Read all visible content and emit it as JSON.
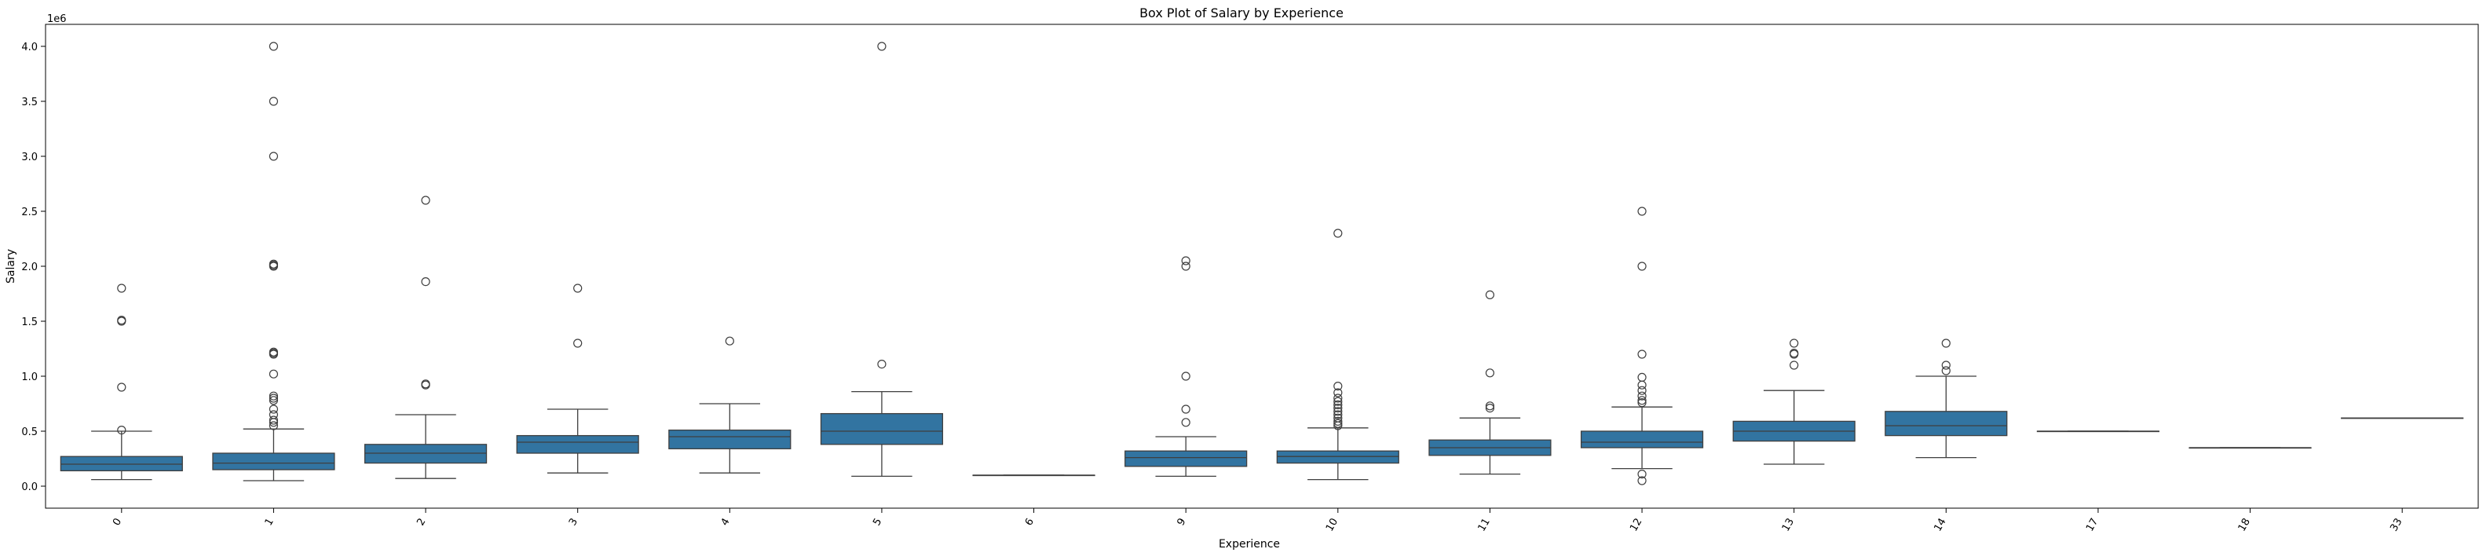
{
  "chart_data": {
    "type": "box",
    "title": "Box Plot of Salary by Experience",
    "xlabel": "Experience",
    "ylabel": "Salary",
    "y_offset_label": "1e6",
    "y_multiplier": 1000000,
    "ylim": [
      -0.2,
      4.2
    ],
    "yticks": [
      0.0,
      0.5,
      1.0,
      1.5,
      2.0,
      2.5,
      3.0,
      3.5,
      4.0
    ],
    "ytick_labels": [
      "0.0",
      "0.5",
      "1.0",
      "1.5",
      "2.0",
      "2.5",
      "3.0",
      "3.5",
      "4.0"
    ],
    "box_color": "#3274a1",
    "grid": false,
    "categories": [
      "0",
      "1",
      "2",
      "3",
      "4",
      "5",
      "6",
      "9",
      "10",
      "11",
      "12",
      "13",
      "14",
      "17",
      "18",
      "33"
    ],
    "boxes": [
      {
        "q1": 0.14,
        "median": 0.2,
        "q3": 0.27,
        "whislo": 0.06,
        "whishi": 0.5,
        "fliers": [
          0.51,
          0.9,
          1.5,
          1.51,
          1.8
        ]
      },
      {
        "q1": 0.15,
        "median": 0.21,
        "q3": 0.3,
        "whislo": 0.05,
        "whishi": 0.52,
        "fliers": [
          0.55,
          0.58,
          0.6,
          0.65,
          0.7,
          0.78,
          0.8,
          0.82,
          1.02,
          1.2,
          1.21,
          1.22,
          2.0,
          2.01,
          2.02,
          3.0,
          3.5,
          4.0
        ]
      },
      {
        "q1": 0.21,
        "median": 0.3,
        "q3": 0.38,
        "whislo": 0.07,
        "whishi": 0.65,
        "fliers": [
          0.92,
          0.93,
          1.86,
          2.6
        ]
      },
      {
        "q1": 0.3,
        "median": 0.4,
        "q3": 0.46,
        "whislo": 0.12,
        "whishi": 0.7,
        "fliers": [
          1.3,
          1.8
        ]
      },
      {
        "q1": 0.34,
        "median": 0.45,
        "q3": 0.51,
        "whislo": 0.12,
        "whishi": 0.75,
        "fliers": [
          1.32
        ]
      },
      {
        "q1": 0.38,
        "median": 0.5,
        "q3": 0.66,
        "whislo": 0.09,
        "whishi": 0.86,
        "fliers": [
          1.11,
          4.0
        ]
      },
      {
        "q1": 0.1,
        "median": 0.1,
        "q3": 0.1,
        "whislo": 0.1,
        "whishi": 0.1,
        "fliers": []
      },
      {
        "q1": 0.18,
        "median": 0.26,
        "q3": 0.32,
        "whislo": 0.09,
        "whishi": 0.45,
        "fliers": [
          0.58,
          0.7,
          1.0,
          2.0,
          2.05
        ]
      },
      {
        "q1": 0.21,
        "median": 0.27,
        "q3": 0.32,
        "whislo": 0.06,
        "whishi": 0.53,
        "fliers": [
          0.55,
          0.57,
          0.59,
          0.62,
          0.65,
          0.68,
          0.71,
          0.74,
          0.77,
          0.8,
          0.85,
          0.91,
          2.3
        ]
      },
      {
        "q1": 0.28,
        "median": 0.35,
        "q3": 0.42,
        "whislo": 0.11,
        "whishi": 0.62,
        "fliers": [
          0.71,
          0.73,
          1.03,
          1.74
        ]
      },
      {
        "q1": 0.35,
        "median": 0.4,
        "q3": 0.5,
        "whislo": 0.16,
        "whishi": 0.72,
        "fliers": [
          0.05,
          0.11,
          0.76,
          0.78,
          0.82,
          0.87,
          0.92,
          0.99,
          1.2,
          2.0,
          2.5
        ]
      },
      {
        "q1": 0.41,
        "median": 0.5,
        "q3": 0.59,
        "whislo": 0.2,
        "whishi": 0.87,
        "fliers": [
          1.1,
          1.2,
          1.21,
          1.3
        ]
      },
      {
        "q1": 0.46,
        "median": 0.55,
        "q3": 0.68,
        "whislo": 0.26,
        "whishi": 1.0,
        "fliers": [
          1.05,
          1.1,
          1.3
        ]
      },
      {
        "q1": 0.5,
        "median": 0.5,
        "q3": 0.5,
        "whislo": 0.5,
        "whishi": 0.5,
        "fliers": []
      },
      {
        "q1": 0.35,
        "median": 0.35,
        "q3": 0.35,
        "whislo": 0.35,
        "whishi": 0.35,
        "fliers": []
      },
      {
        "q1": 0.62,
        "median": 0.62,
        "q3": 0.62,
        "whislo": 0.62,
        "whishi": 0.62,
        "fliers": []
      }
    ]
  }
}
